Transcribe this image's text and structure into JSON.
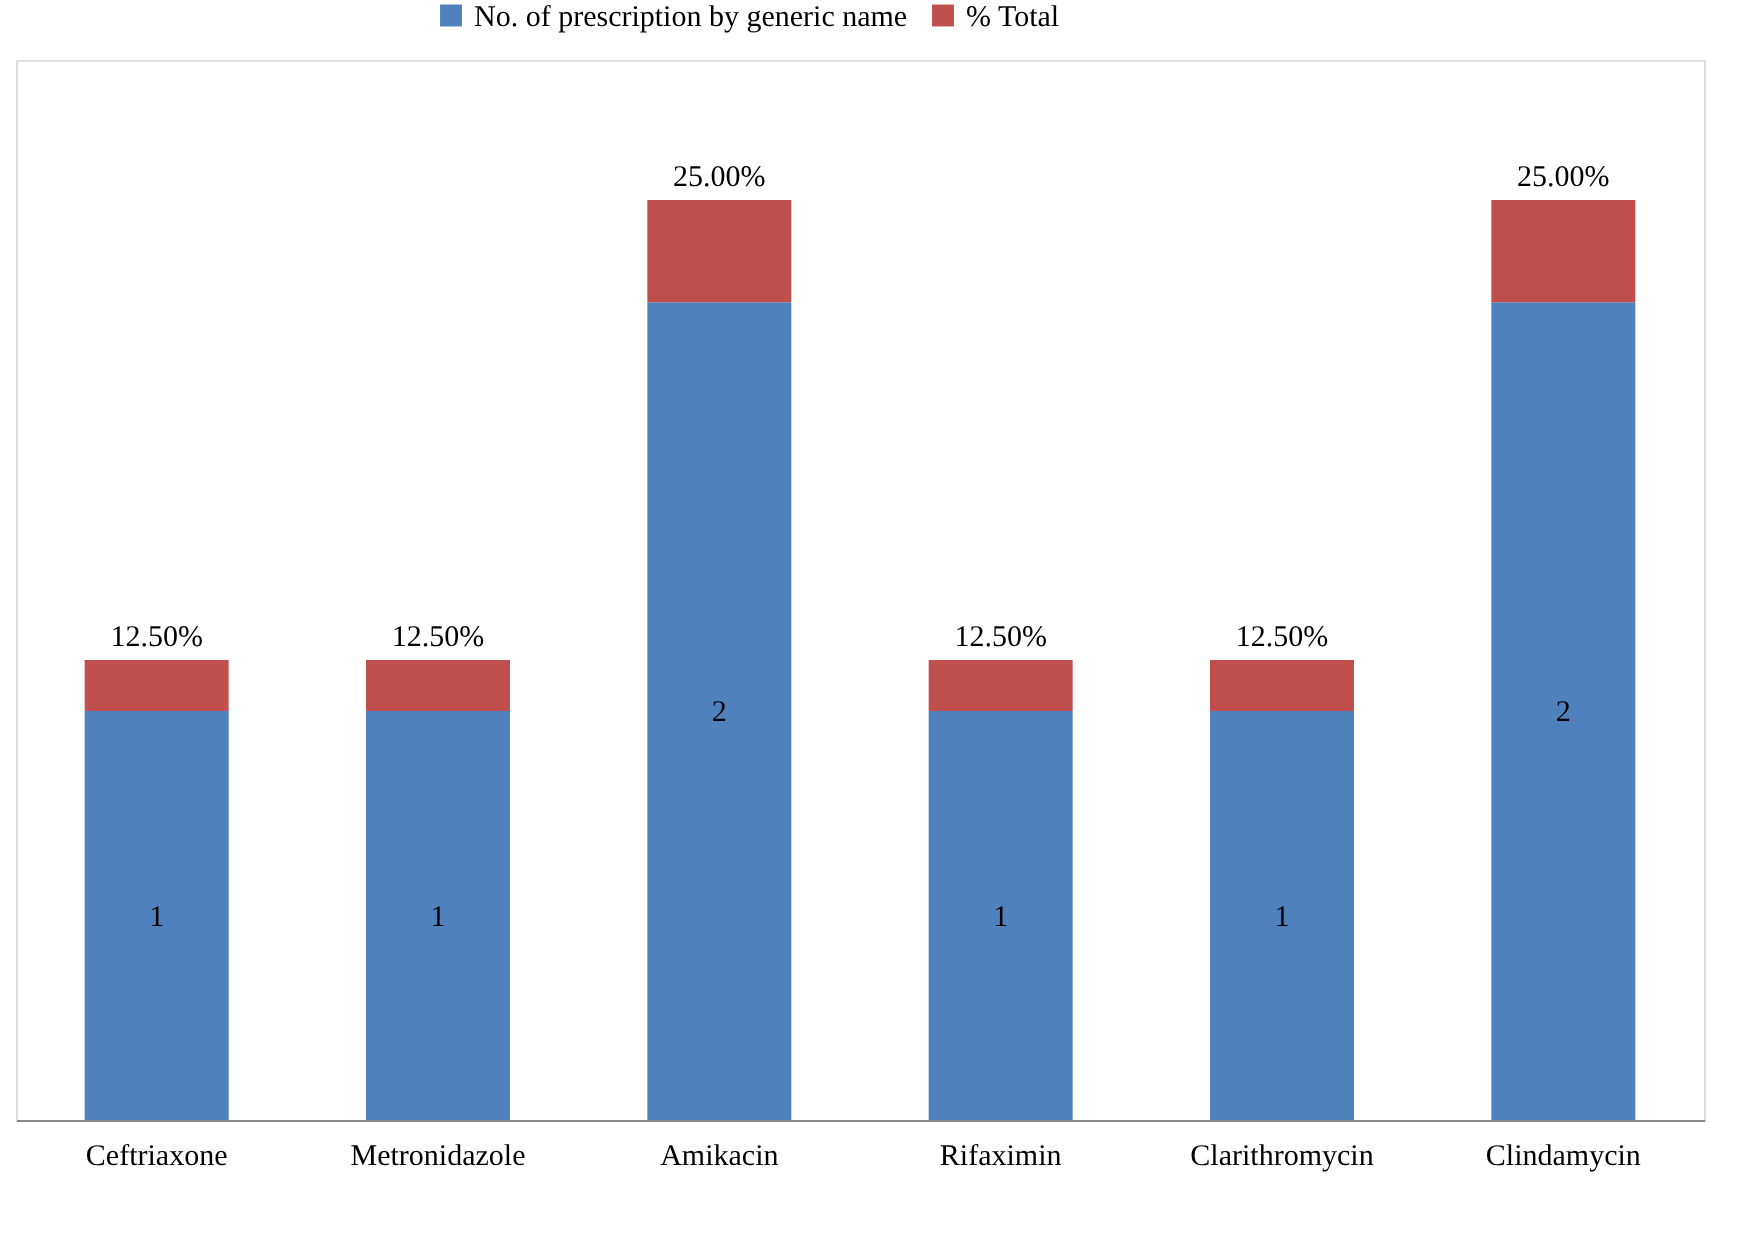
{
  "chart_data": {
    "type": "bar",
    "stacked": true,
    "categories": [
      "Ceftriaxone",
      "Metronidazole",
      "Amikacin",
      "Rifaximin",
      "Clarithromycin",
      "Clindamycin"
    ],
    "series": [
      {
        "name": "No. of prescription by generic name",
        "color": "#4f81bd",
        "values": [
          1,
          1,
          2,
          1,
          1,
          2
        ],
        "value_labels": [
          "1",
          "1",
          "2",
          "1",
          "1",
          "2"
        ]
      },
      {
        "name": "% Total",
        "color": "#c0504d",
        "values": [
          0.125,
          0.125,
          0.25,
          0.125,
          0.125,
          0.25
        ],
        "value_labels": [
          "12.50%",
          "12.50%",
          "25.00%",
          "12.50%",
          "12.50%",
          "25.00%"
        ]
      }
    ],
    "legend": "top",
    "tick_labels": "x"
  }
}
